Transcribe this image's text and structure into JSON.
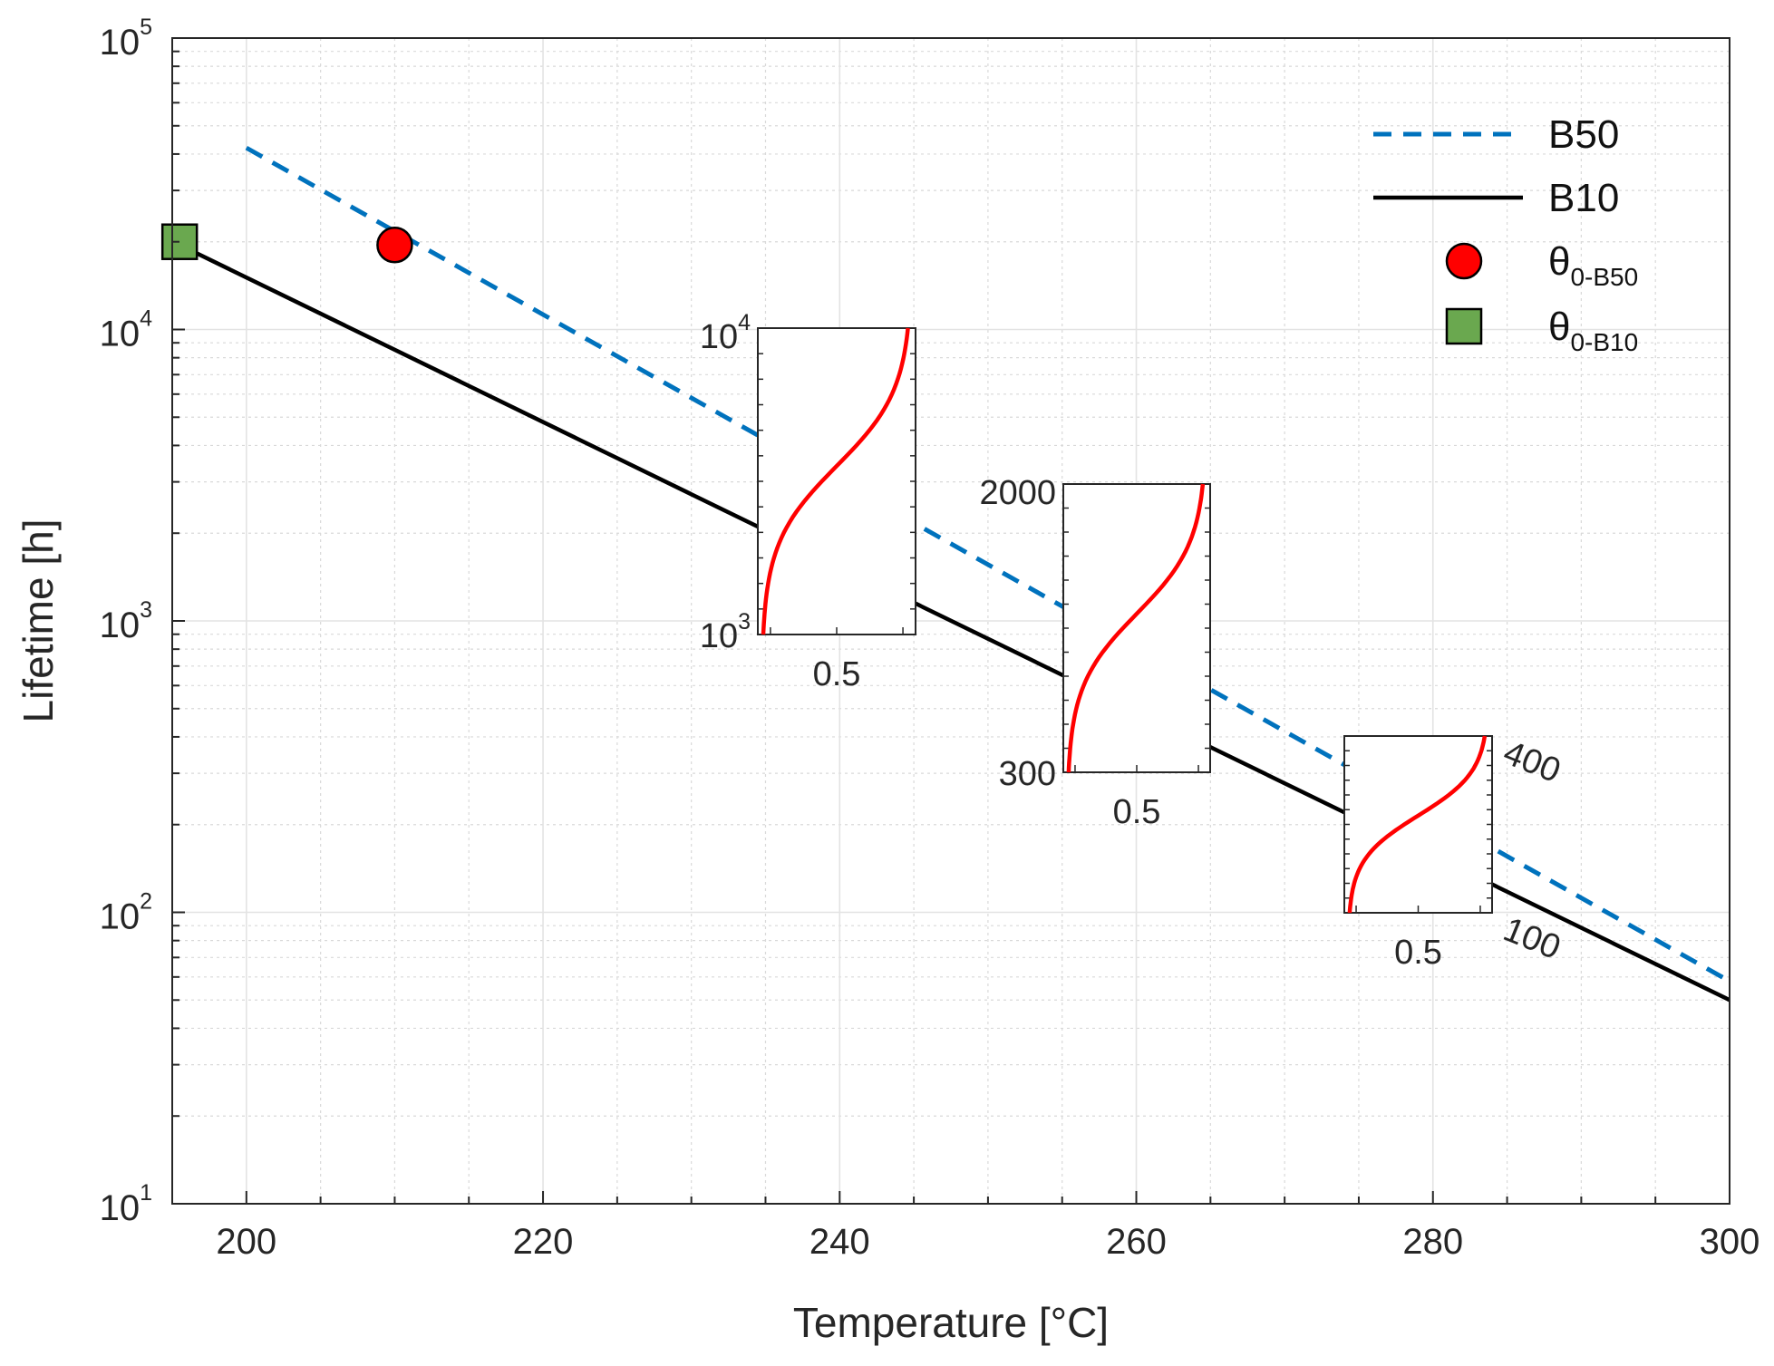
{
  "chart_data": {
    "type": "line",
    "title": "",
    "xlabel": "Temperature [°C]",
    "ylabel": "Lifetime [h]",
    "xlim": [
      195,
      300
    ],
    "ylim": [
      10,
      100000
    ],
    "yscale": "log",
    "grid": true,
    "legend_position": "top-right",
    "x_ticks": [
      {
        "value": 200,
        "label": "200"
      },
      {
        "value": 220,
        "label": "220"
      },
      {
        "value": 240,
        "label": "240"
      },
      {
        "value": 260,
        "label": "260"
      },
      {
        "value": 280,
        "label": "280"
      },
      {
        "value": 300,
        "label": "300"
      }
    ],
    "y_ticks": [
      {
        "value": 10,
        "base": "10",
        "exp": "1"
      },
      {
        "value": 100,
        "base": "10",
        "exp": "2"
      },
      {
        "value": 1000,
        "base": "10",
        "exp": "3"
      },
      {
        "value": 10000,
        "base": "10",
        "exp": "4"
      },
      {
        "value": 100000,
        "base": "10",
        "exp": "5"
      }
    ],
    "series": [
      {
        "name": "B50",
        "style": "dashed",
        "color": "#0072BD",
        "x": [
          200,
          300
        ],
        "y": [
          42000,
          58
        ]
      },
      {
        "name": "B10",
        "style": "solid",
        "color": "#000000",
        "x": [
          195.5,
          300
        ],
        "y": [
          19500,
          50
        ]
      }
    ],
    "markers": [
      {
        "name": "θ0-B50",
        "label_main": "θ",
        "label_sub": "0-B50",
        "shape": "circle",
        "color": "#FF0000",
        "x": 210,
        "y": 19500
      },
      {
        "name": "θ0-B10",
        "label_main": "θ",
        "label_sub": "0-B10",
        "shape": "square",
        "color": "#6AA84F",
        "x": 195.5,
        "y": 20000
      }
    ],
    "insets": [
      {
        "name": "inset-230",
        "temperature": 230,
        "xlim": [
          0,
          1
        ],
        "xtick_label": "0.5",
        "ylim": [
          900,
          10000
        ],
        "y_labels": [
          {
            "base": "10",
            "exp": "4",
            "value": 10000
          },
          {
            "base": "10",
            "exp": "3",
            "value": 1000
          }
        ],
        "label_side": "left",
        "curve_color": "#FF0000"
      },
      {
        "name": "inset-250",
        "temperature": 250,
        "xlim": [
          0,
          1
        ],
        "xtick_label": "0.5",
        "ylim": [
          300,
          2000
        ],
        "y_labels": [
          {
            "text": "2000",
            "value": 2000
          },
          {
            "text": "300",
            "value": 300
          }
        ],
        "label_side": "left",
        "curve_color": "#FF0000"
      },
      {
        "name": "inset-270",
        "temperature": 270,
        "xlim": [
          0,
          1
        ],
        "xtick_label": "0.5",
        "ylim": [
          100,
          400
        ],
        "y_labels": [
          {
            "text": "400",
            "value": 400
          },
          {
            "text": "100",
            "value": 100
          }
        ],
        "label_side": "right-rotated",
        "curve_color": "#FF0000"
      }
    ],
    "legend": [
      {
        "label": "B50",
        "kind": "dashed-line",
        "color": "#0072BD"
      },
      {
        "label": "B10",
        "kind": "solid-line",
        "color": "#000000"
      },
      {
        "label_main": "θ",
        "label_sub": "0-B50",
        "kind": "circle",
        "color": "#FF0000"
      },
      {
        "label_main": "θ",
        "label_sub": "0-B10",
        "kind": "square",
        "color": "#6AA84F"
      }
    ]
  }
}
